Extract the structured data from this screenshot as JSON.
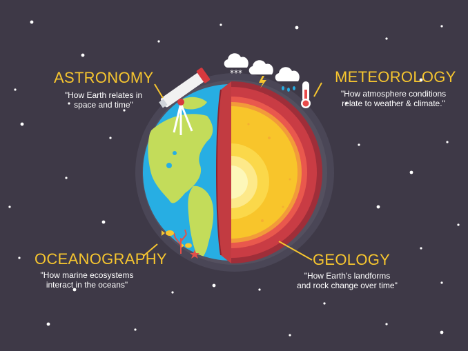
{
  "colors": {
    "background": "#3e3947",
    "accent": "#f7c62f",
    "ocean": "#27aee3",
    "land": "#c3dc5a",
    "crust_outer": "#c1383e",
    "mantle": "#e9584d",
    "outer_core": "#f8c52b",
    "inner_core": "#fdf7b9"
  },
  "sections": [
    {
      "key": "astronomy",
      "title": "ASTRONOMY",
      "desc": "\"How Earth relates in\nspace and time\""
    },
    {
      "key": "meteorology",
      "title": "METEOROLOGY",
      "desc": "\"How atmosphere conditions\nrelate to weather & climate.\""
    },
    {
      "key": "oceanography",
      "title": "OCEANOGRAPHY",
      "desc": "\"How marine ecosystems\ninteract in the oceans\""
    },
    {
      "key": "geology",
      "title": "GEOLOGY",
      "desc": "\"How Earth's landforms\nand rock change over time\""
    }
  ],
  "icons": [
    "telescope-icon",
    "snow-cloud-icon",
    "storm-cloud-icon",
    "rain-cloud-icon",
    "thermometer-icon",
    "fish-icon",
    "coral-icon",
    "starfish-icon"
  ]
}
